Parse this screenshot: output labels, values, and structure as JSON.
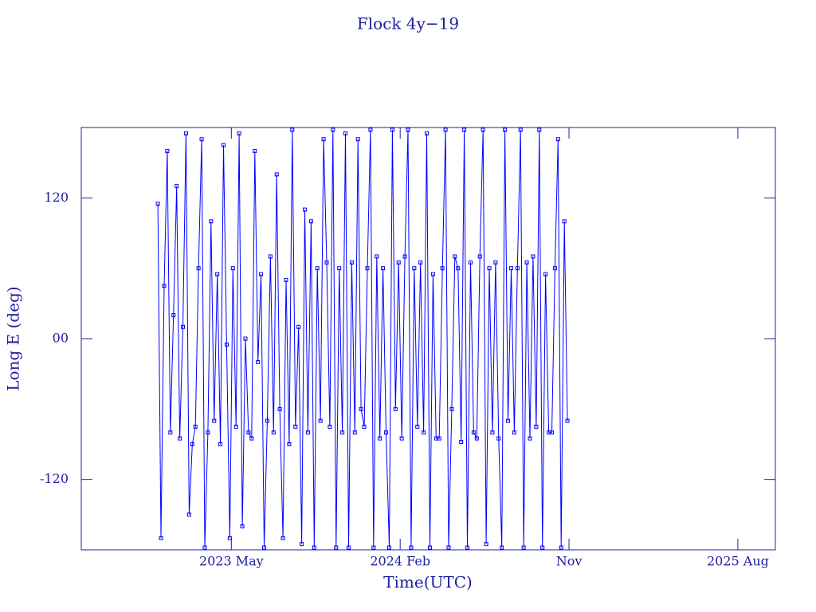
{
  "chart_data": {
    "type": "line",
    "title": "Flock 4y−19",
    "xlabel": "Time(UTC)",
    "ylabel": "Long E (deg)",
    "xlim": [
      "2022-09",
      "2025-10"
    ],
    "xticks": [
      {
        "value": "2023-05",
        "label": "2023 May"
      },
      {
        "value": "2024-02",
        "label": "2024 Feb"
      },
      {
        "value": "2024-11",
        "label": "Nov"
      },
      {
        "value": "2025-08",
        "label": "2025 Aug"
      }
    ],
    "ylim": [
      -180,
      180
    ],
    "yticks": [
      120,
      {
        "value": 0,
        "label": "00"
      },
      -120
    ],
    "x": [
      "2023-01",
      "2023-01",
      "2023-01",
      "2023-01",
      "2023-01",
      "2023-01",
      "2023-02",
      "2023-02",
      "2023-02",
      "2023-02",
      "2023-02",
      "2023-02",
      "2023-03",
      "2023-03",
      "2023-03",
      "2023-03",
      "2023-03",
      "2023-03",
      "2023-04",
      "2023-04",
      "2023-04",
      "2023-04",
      "2023-04",
      "2023-04",
      "2023-05",
      "2023-05",
      "2023-05",
      "2023-05",
      "2023-05",
      "2023-05",
      "2023-06",
      "2023-06",
      "2023-06",
      "2023-06",
      "2023-06",
      "2023-06",
      "2023-07",
      "2023-07",
      "2023-07",
      "2023-07",
      "2023-07",
      "2023-07",
      "2023-08",
      "2023-08",
      "2023-08",
      "2023-08",
      "2023-08",
      "2023-08",
      "2023-09",
      "2023-09",
      "2023-09",
      "2023-09",
      "2023-09",
      "2023-09",
      "2023-10",
      "2023-10",
      "2023-10",
      "2023-10",
      "2023-10",
      "2023-10",
      "2023-11",
      "2023-11",
      "2023-11",
      "2023-11",
      "2023-11",
      "2023-11",
      "2023-12",
      "2023-12",
      "2023-12",
      "2023-12",
      "2023-12",
      "2023-12",
      "2024-01",
      "2024-01",
      "2024-01",
      "2024-01",
      "2024-01",
      "2024-01",
      "2024-02",
      "2024-02",
      "2024-02",
      "2024-02",
      "2024-02",
      "2024-02",
      "2024-03",
      "2024-03",
      "2024-03",
      "2024-03",
      "2024-03",
      "2024-03",
      "2024-04",
      "2024-04",
      "2024-04",
      "2024-04",
      "2024-04",
      "2024-04",
      "2024-05",
      "2024-05",
      "2024-05",
      "2024-05",
      "2024-05",
      "2024-05",
      "2024-06",
      "2024-06",
      "2024-06",
      "2024-06",
      "2024-06",
      "2024-06",
      "2024-07",
      "2024-07",
      "2024-07",
      "2024-07",
      "2024-07",
      "2024-07",
      "2024-08",
      "2024-08",
      "2024-08",
      "2024-08",
      "2024-08",
      "2024-08",
      "2024-09",
      "2024-09",
      "2024-09",
      "2024-09",
      "2024-09",
      "2024-09",
      "2024-10",
      "2024-10",
      "2024-10",
      "2024-10",
      "2024-10",
      "2024-10"
    ],
    "series": [
      {
        "color": "#0000ff",
        "values": [
          115,
          -170,
          45,
          160,
          -80,
          20,
          130,
          -85,
          10,
          175,
          -150,
          -90,
          -75,
          60,
          170,
          -178,
          -80,
          100,
          -70,
          55,
          -90,
          165,
          -5,
          -170,
          60,
          -75,
          175,
          -160,
          0,
          -80,
          -85,
          160,
          -20,
          55,
          -178,
          -70,
          70,
          -80,
          140,
          -60,
          -170,
          50,
          -90,
          178,
          -75,
          10,
          -175,
          110,
          -80,
          100,
          -178,
          60,
          -70,
          170,
          65,
          -75,
          178,
          -178,
          60,
          -80,
          175,
          -178,
          65,
          -80,
          170,
          -60,
          -75,
          60,
          178,
          -178,
          70,
          -85,
          60,
          -80,
          -178,
          178,
          -60,
          65,
          -85,
          70,
          178,
          -178,
          60,
          -75,
          65,
          -80,
          175,
          -178,
          55,
          -85,
          -85,
          60,
          178,
          -178,
          -60,
          70,
          60,
          -88,
          178,
          -178,
          65,
          -80,
          -85,
          70,
          178,
          -175,
          60,
          -80,
          65,
          -85,
          -178,
          178,
          -70,
          60,
          -80,
          60,
          178,
          -178,
          65,
          -85,
          70,
          -75,
          178,
          -178,
          55,
          -80,
          -80,
          60,
          170,
          -178,
          100,
          -70
        ]
      }
    ]
  }
}
